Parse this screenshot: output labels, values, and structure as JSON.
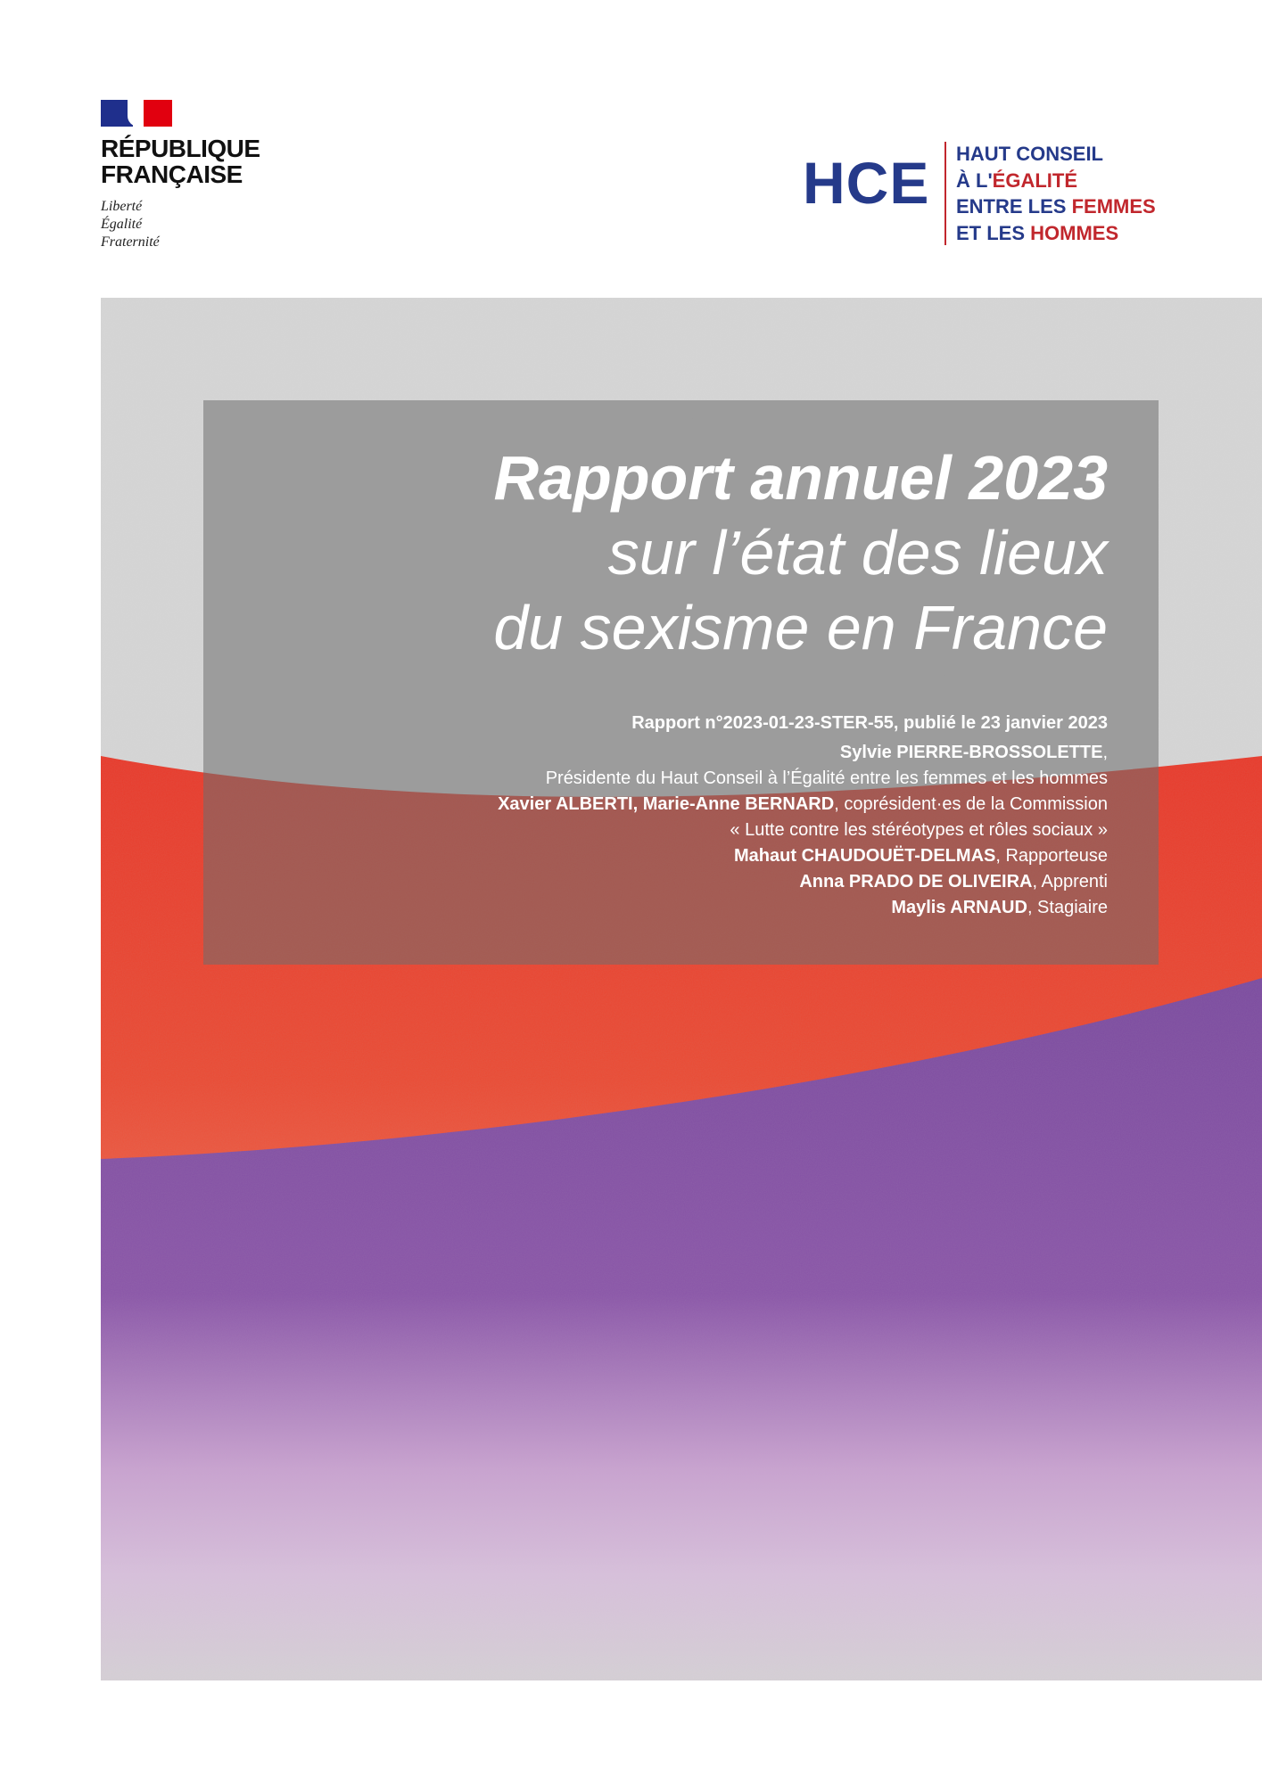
{
  "logo_rf": {
    "name_line1": "RÉPUBLIQUE",
    "name_line2": "FRANÇAISE",
    "motto": [
      "Liberté",
      "Égalité",
      "Fraternité"
    ],
    "colors": {
      "blue": "#1f2f8c",
      "red": "#e1000f"
    }
  },
  "logo_hce": {
    "acronym": "HCE",
    "line1": "HAUT CONSEIL",
    "line2_a": "À L'",
    "line2_b": "ÉGALITÉ",
    "line3_a": "ENTRE LES ",
    "line3_b": "FEMMES",
    "line4_a": "ET LES ",
    "line4_b": "HOMMES",
    "colors": {
      "blue": "#253a8a",
      "red": "#c1272d"
    }
  },
  "cover": {
    "title_line1": "Rapport annuel 2023",
    "title_line2": "sur l’état des lieux",
    "title_line3": "du sexisme en France",
    "report_ref": "Rapport n°2023-01-23-STER-55, publié le 23 janvier 2023",
    "credits": [
      {
        "name": "Sylvie PIERRE-BROSSOLETTE",
        "role": ","
      },
      {
        "name": "",
        "role": "Présidente du Haut Conseil à l’Égalité entre les femmes et les hommes"
      },
      {
        "name": "Xavier ALBERTI, Marie-Anne BERNARD",
        "role": ", coprésident·es de la Commission"
      },
      {
        "name": "",
        "role": "« Lutte contre les stéréotypes et rôles sociaux »"
      },
      {
        "name": "Mahaut CHAUDOUËT-DELMAS",
        "role": ", Rapporteuse"
      },
      {
        "name": "Anna PRADO DE OLIVEIRA",
        "role": ", Apprenti"
      },
      {
        "name": "Maylis ARNAUD",
        "role": ", Stagiaire"
      }
    ],
    "colors": {
      "red": "#e8392a",
      "purple": "#7e4fa3",
      "lavender": "#d8b8dc",
      "gray": "#d4d4d4"
    }
  }
}
